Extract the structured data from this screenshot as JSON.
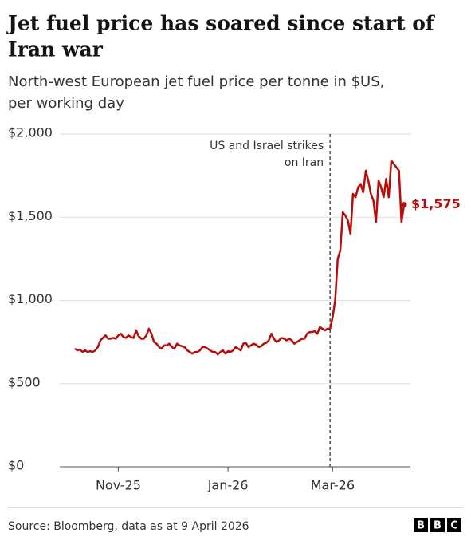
{
  "chart_data": {
    "type": "line",
    "title": [
      "Jet fuel price has soared since start of",
      "Iran war"
    ],
    "subtitle": [
      "North-west European jet fuel price per tonne in $US,",
      "per working day"
    ],
    "categories": [
      null,
      null,
      null,
      null,
      null,
      null,
      null,
      null,
      null,
      null,
      null,
      null,
      null,
      null,
      null,
      null,
      null,
      "Nov-25",
      null,
      null,
      null,
      null,
      null,
      null,
      null,
      null,
      null,
      null,
      null,
      null,
      null,
      null,
      null,
      null,
      null,
      null,
      null,
      null,
      null,
      null,
      null,
      null,
      null,
      null,
      null,
      null,
      null,
      null,
      null,
      null,
      null,
      null,
      null,
      null,
      null,
      null,
      null,
      null,
      null,
      null,
      "Jan-26",
      null,
      null,
      null,
      null,
      null,
      null,
      null,
      null,
      null,
      null,
      null,
      null,
      null,
      null,
      null,
      null,
      null,
      null,
      null,
      null,
      null,
      null,
      null,
      null,
      null,
      null,
      null,
      null,
      null,
      null,
      null,
      null,
      null,
      null,
      null,
      null,
      null,
      null,
      null,
      null,
      "Mar-26",
      null,
      null,
      null,
      null,
      null,
      null,
      null,
      null,
      null,
      null,
      null,
      null,
      null,
      null,
      null,
      null,
      null,
      null,
      null,
      null,
      null,
      null,
      null,
      null,
      null,
      null,
      null,
      null
    ],
    "series": [
      {
        "name": "Jet fuel price",
        "color": "#b80c09",
        "values": [
          710,
          700,
          705,
          690,
          700,
          690,
          695,
          690,
          700,
          720,
          760,
          775,
          790,
          770,
          770,
          775,
          770,
          790,
          800,
          780,
          775,
          790,
          780,
          775,
          820,
          785,
          770,
          770,
          790,
          830,
          800,
          750,
          740,
          720,
          710,
          730,
          730,
          740,
          720,
          710,
          740,
          730,
          725,
          720,
          700,
          690,
          680,
          690,
          690,
          700,
          720,
          720,
          710,
          700,
          690,
          690,
          675,
          690,
          700,
          680,
          695,
          690,
          700,
          720,
          710,
          700,
          740,
          745,
          720,
          730,
          740,
          735,
          720,
          725,
          740,
          745,
          760,
          800,
          770,
          750,
          760,
          775,
          770,
          760,
          770,
          760,
          740,
          750,
          760,
          770,
          770,
          800,
          810,
          810,
          815,
          800,
          840,
          830,
          820,
          830,
          830,
          900,
          1000,
          1250,
          1300,
          1530,
          1510,
          1480,
          1400,
          1640,
          1620,
          1680,
          1700,
          1650,
          1780,
          1720,
          1640,
          1600,
          1470,
          1720,
          1680,
          1620,
          1730,
          1620,
          1840,
          1820,
          1800,
          1780,
          1470,
          1575
        ]
      }
    ],
    "end_label": {
      "index": 129,
      "label": "$1,575"
    },
    "annotation": {
      "index": 100,
      "lines": [
        "US and Israel strikes",
        "on Iran"
      ]
    },
    "ylim": [
      0,
      2000
    ],
    "yticks": [
      {
        "value": 0,
        "label": "$0"
      },
      {
        "value": 500,
        "label": "$500"
      },
      {
        "value": 1000,
        "label": "$1,000"
      },
      {
        "value": 1500,
        "label": "$1,500"
      },
      {
        "value": 2000,
        "label": "$2,000"
      }
    ],
    "grid": true,
    "source": "Source: Bloomberg, data as at 9 April 2026",
    "logo": [
      "B",
      "B",
      "C"
    ]
  }
}
